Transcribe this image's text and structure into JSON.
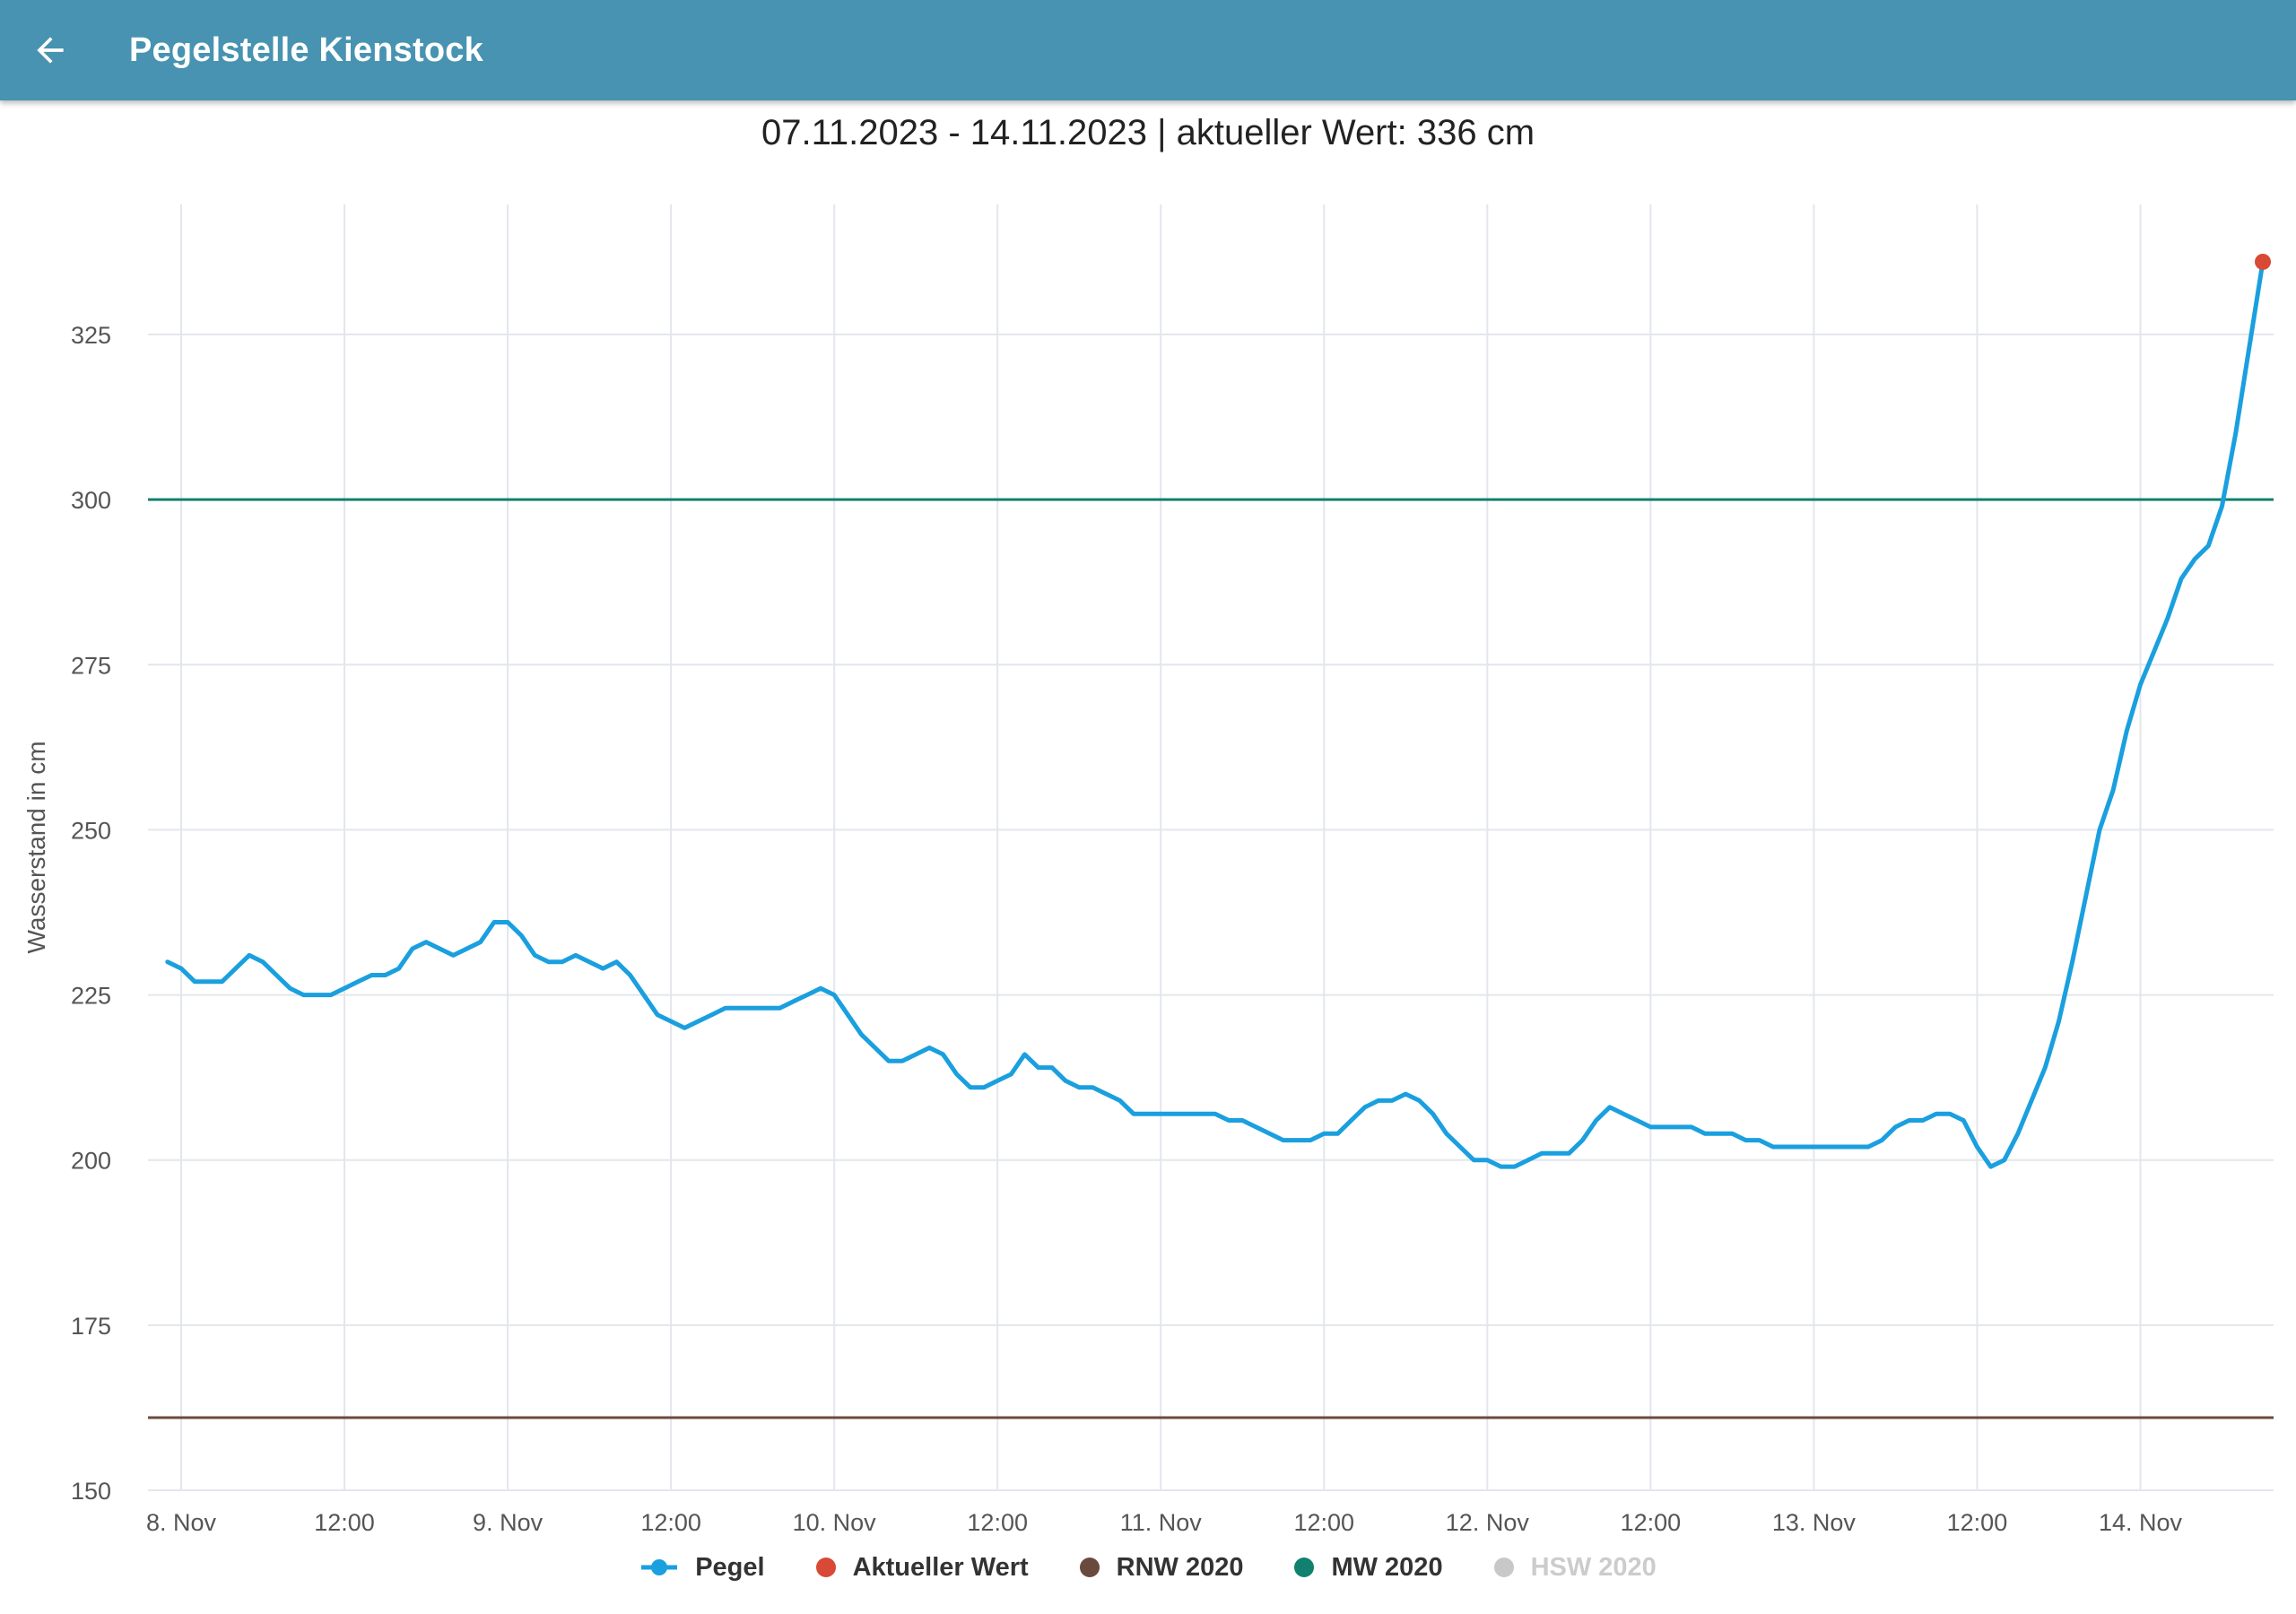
{
  "app": {
    "title": "Pegelstelle Kienstock",
    "back_icon": "arrow-back-icon"
  },
  "chart_header": {
    "subtitle": "07.11.2023 - 14.11.2023 | aktueller Wert: 336 cm"
  },
  "chart_data": {
    "type": "line",
    "ylabel": "Wasserstand in cm",
    "xlabel": "",
    "ylim": [
      150,
      345
    ],
    "yticks": [
      150,
      175,
      200,
      225,
      250,
      275,
      300,
      325
    ],
    "xticks": [
      {
        "t": 0,
        "label": "8. Nov"
      },
      {
        "t": 12,
        "label": "12:00"
      },
      {
        "t": 24,
        "label": "9. Nov"
      },
      {
        "t": 36,
        "label": "12:00"
      },
      {
        "t": 48,
        "label": "10. Nov"
      },
      {
        "t": 60,
        "label": "12:00"
      },
      {
        "t": 72,
        "label": "11. Nov"
      },
      {
        "t": 84,
        "label": "12:00"
      },
      {
        "t": 96,
        "label": "12. Nov"
      },
      {
        "t": 108,
        "label": "12:00"
      },
      {
        "t": 120,
        "label": "13. Nov"
      },
      {
        "t": 132,
        "label": "12:00"
      },
      {
        "t": 144,
        "label": "14. Nov"
      }
    ],
    "grid": true,
    "legend_position": "bottom",
    "series": [
      {
        "name": "Pegel",
        "color": "#1a9fdf",
        "x": [
          -1,
          0,
          1,
          2,
          3,
          4,
          5,
          6,
          7,
          8,
          9,
          10,
          11,
          12,
          13,
          14,
          15,
          16,
          17,
          18,
          19,
          20,
          21,
          22,
          23,
          24,
          25,
          26,
          27,
          28,
          29,
          30,
          31,
          32,
          33,
          34,
          35,
          36,
          37,
          38,
          39,
          40,
          41,
          42,
          43,
          44,
          45,
          46,
          47,
          48,
          49,
          50,
          51,
          52,
          53,
          54,
          55,
          56,
          57,
          58,
          59,
          60,
          61,
          62,
          63,
          64,
          65,
          66,
          67,
          68,
          69,
          70,
          71,
          72,
          73,
          74,
          75,
          76,
          77,
          78,
          79,
          80,
          81,
          82,
          83,
          84,
          85,
          86,
          87,
          88,
          89,
          90,
          91,
          92,
          93,
          94,
          95,
          96,
          97,
          98,
          99,
          100,
          101,
          102,
          103,
          104,
          105,
          106,
          107,
          108,
          109,
          110,
          111,
          112,
          113,
          114,
          115,
          116,
          117,
          118,
          119,
          120,
          121,
          122,
          123,
          124,
          125,
          126,
          127,
          128,
          129,
          130,
          131,
          132,
          133,
          134,
          135,
          136,
          137,
          138,
          139,
          140,
          141,
          142,
          143,
          144,
          145,
          146,
          147,
          148,
          149,
          150,
          151,
          152,
          153
        ],
        "values": [
          230,
          229,
          227,
          227,
          227,
          229,
          231,
          230,
          228,
          226,
          225,
          225,
          225,
          226,
          227,
          228,
          228,
          229,
          232,
          233,
          232,
          231,
          232,
          233,
          236,
          236,
          234,
          231,
          230,
          230,
          231,
          230,
          229,
          230,
          228,
          225,
          222,
          221,
          220,
          221,
          222,
          223,
          223,
          223,
          223,
          223,
          224,
          225,
          226,
          225,
          222,
          219,
          217,
          215,
          215,
          216,
          217,
          216,
          213,
          211,
          211,
          212,
          213,
          216,
          214,
          214,
          212,
          211,
          211,
          210,
          209,
          207,
          207,
          207,
          207,
          207,
          207,
          207,
          206,
          206,
          205,
          204,
          203,
          203,
          203,
          204,
          204,
          206,
          208,
          209,
          209,
          210,
          209,
          207,
          204,
          202,
          200,
          200,
          199,
          199,
          200,
          201,
          201,
          201,
          203,
          206,
          208,
          207,
          206,
          205,
          205,
          205,
          205,
          204,
          204,
          204,
          203,
          203,
          202,
          202,
          202,
          202,
          202,
          202,
          202,
          202,
          203,
          205,
          206,
          206,
          207,
          207,
          206,
          202,
          199,
          200,
          204,
          209,
          214,
          221,
          230,
          240,
          250,
          256,
          265,
          272,
          277,
          282,
          288,
          291,
          293,
          299,
          310,
          323,
          336
        ]
      },
      {
        "name": "Aktueller Wert",
        "color": "#d84936",
        "x": [
          153
        ],
        "values": [
          336
        ]
      },
      {
        "name": "RNW 2020",
        "color": "#6b4a3e",
        "values": [
          161
        ]
      },
      {
        "name": "MW 2020",
        "color": "#11806f",
        "values": [
          300
        ]
      },
      {
        "name": "HSW 2020",
        "color": "#c8c8c8",
        "values": [],
        "hidden": true
      }
    ]
  },
  "legend": {
    "items": [
      {
        "label": "Pegel",
        "color": "#1a9fdf",
        "symbol": "line-dot",
        "hidden": false
      },
      {
        "label": "Aktueller Wert",
        "color": "#d84936",
        "symbol": "dot",
        "hidden": false
      },
      {
        "label": "RNW 2020",
        "color": "#6b4a3e",
        "symbol": "dot",
        "hidden": false
      },
      {
        "label": "MW 2020",
        "color": "#11806f",
        "symbol": "dot",
        "hidden": false
      },
      {
        "label": "HSW 2020",
        "color": "#c8c8c8",
        "symbol": "dot",
        "hidden": true
      }
    ]
  }
}
